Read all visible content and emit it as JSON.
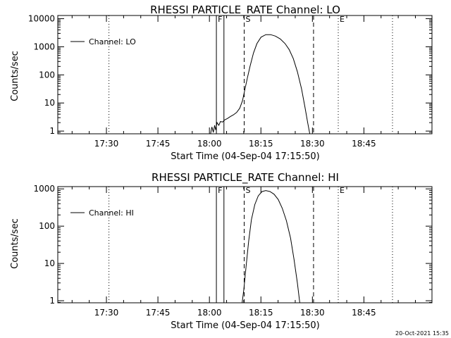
{
  "footer": {
    "timestamp": "20-Oct-2021 15:35"
  },
  "chart_data": [
    {
      "type": "line",
      "title": "RHESSI PARTICLE_RATE Channel: LO",
      "xlabel": "Start Time (04-Sep-04 17:15:50)",
      "ylabel": "Counts/sec",
      "y_scale": "log",
      "ylim": [
        0.8,
        13000
      ],
      "xlim_minutes_after_start": [
        0,
        109
      ],
      "y_ticks": [
        {
          "value": 1,
          "label": "1"
        },
        {
          "value": 10,
          "label": "10"
        },
        {
          "value": 100,
          "label": "100"
        },
        {
          "value": 1000,
          "label": "1000"
        },
        {
          "value": 10000,
          "label": "10000"
        }
      ],
      "x_ticks": [
        {
          "value": 14.17,
          "label": "17:30"
        },
        {
          "value": 29.17,
          "label": "17:45"
        },
        {
          "value": 44.17,
          "label": "18:00"
        },
        {
          "value": 59.17,
          "label": "18:15"
        },
        {
          "value": 74.17,
          "label": "18:30"
        },
        {
          "value": 89.17,
          "label": "18:45"
        }
      ],
      "legend": {
        "label": "Channel: LO",
        "position": "top-left"
      },
      "markers": [
        {
          "label": "F",
          "x": 46.2,
          "style": "solid"
        },
        {
          "label": "",
          "x": 48.4,
          "style": "solid"
        },
        {
          "label": "S",
          "x": 54.3,
          "style": "dashed"
        },
        {
          "label": "",
          "x": 74.5,
          "style": "dashed"
        },
        {
          "label": "E",
          "x": 81.7,
          "style": "dotted"
        },
        {
          "label": "",
          "x": 14.9,
          "style": "dotted"
        },
        {
          "label": "",
          "x": 97.5,
          "style": "dotted"
        }
      ],
      "series": [
        {
          "name": "Channel: LO",
          "points": [
            [
              44.5,
              0.8
            ],
            [
              44.9,
              1.4
            ],
            [
              45.3,
              0.9
            ],
            [
              45.7,
              1.6
            ],
            [
              46.0,
              1.1
            ],
            [
              46.4,
              2.0
            ],
            [
              46.9,
              1.6
            ],
            [
              47.4,
              2.2
            ],
            [
              48.0,
              2.1
            ],
            [
              48.6,
              2.5
            ],
            [
              49.4,
              2.8
            ],
            [
              50.3,
              3.3
            ],
            [
              51.2,
              3.8
            ],
            [
              52.1,
              4.6
            ],
            [
              53.0,
              6.5
            ],
            [
              53.8,
              12
            ],
            [
              54.5,
              30
            ],
            [
              55.2,
              75
            ],
            [
              56.0,
              200
            ],
            [
              57.0,
              600
            ],
            [
              58.0,
              1300
            ],
            [
              59.2,
              2200
            ],
            [
              60.6,
              2700
            ],
            [
              62.0,
              2700
            ],
            [
              63.4,
              2400
            ],
            [
              64.8,
              1900
            ],
            [
              66.2,
              1300
            ],
            [
              67.4,
              800
            ],
            [
              68.6,
              380
            ],
            [
              69.8,
              130
            ],
            [
              71.0,
              32
            ],
            [
              72.0,
              7
            ],
            [
              72.8,
              2
            ],
            [
              73.4,
              0.8
            ]
          ]
        }
      ]
    },
    {
      "type": "line",
      "title": "RHESSI PARTICLE_RATE Channel: HI",
      "xlabel": "Start Time (04-Sep-04 17:15:50)",
      "ylabel": "Counts/sec",
      "y_scale": "log",
      "ylim": [
        0.88,
        1150
      ],
      "xlim_minutes_after_start": [
        0,
        109
      ],
      "y_ticks": [
        {
          "value": 1,
          "label": "1"
        },
        {
          "value": 10,
          "label": "10"
        },
        {
          "value": 100,
          "label": "100"
        },
        {
          "value": 1000,
          "label": "1000"
        }
      ],
      "x_ticks": [
        {
          "value": 14.17,
          "label": "17:30"
        },
        {
          "value": 29.17,
          "label": "17:45"
        },
        {
          "value": 44.17,
          "label": "18:00"
        },
        {
          "value": 59.17,
          "label": "18:15"
        },
        {
          "value": 74.17,
          "label": "18:30"
        },
        {
          "value": 89.17,
          "label": "18:45"
        }
      ],
      "legend": {
        "label": "Channel: HI",
        "position": "top-left"
      },
      "markers": [
        {
          "label": "F",
          "x": 46.2,
          "style": "solid"
        },
        {
          "label": "",
          "x": 48.4,
          "style": "solid"
        },
        {
          "label": "S",
          "x": 54.3,
          "style": "dashed"
        },
        {
          "label": "",
          "x": 74.5,
          "style": "dashed"
        },
        {
          "label": "E",
          "x": 81.7,
          "style": "dotted"
        },
        {
          "label": "",
          "x": 14.9,
          "style": "dotted"
        },
        {
          "label": "",
          "x": 97.5,
          "style": "dotted"
        }
      ],
      "series": [
        {
          "name": "Channel: HI",
          "points": [
            [
              53.7,
              0.88
            ],
            [
              54.2,
              2
            ],
            [
              54.9,
              9
            ],
            [
              55.6,
              40
            ],
            [
              56.4,
              150
            ],
            [
              57.4,
              380
            ],
            [
              58.4,
              650
            ],
            [
              59.5,
              850
            ],
            [
              60.6,
              900
            ],
            [
              61.8,
              850
            ],
            [
              63.0,
              720
            ],
            [
              64.2,
              520
            ],
            [
              65.4,
              300
            ],
            [
              66.6,
              140
            ],
            [
              67.8,
              48
            ],
            [
              68.8,
              13
            ],
            [
              69.8,
              3
            ],
            [
              70.5,
              0.88
            ]
          ]
        }
      ]
    }
  ]
}
